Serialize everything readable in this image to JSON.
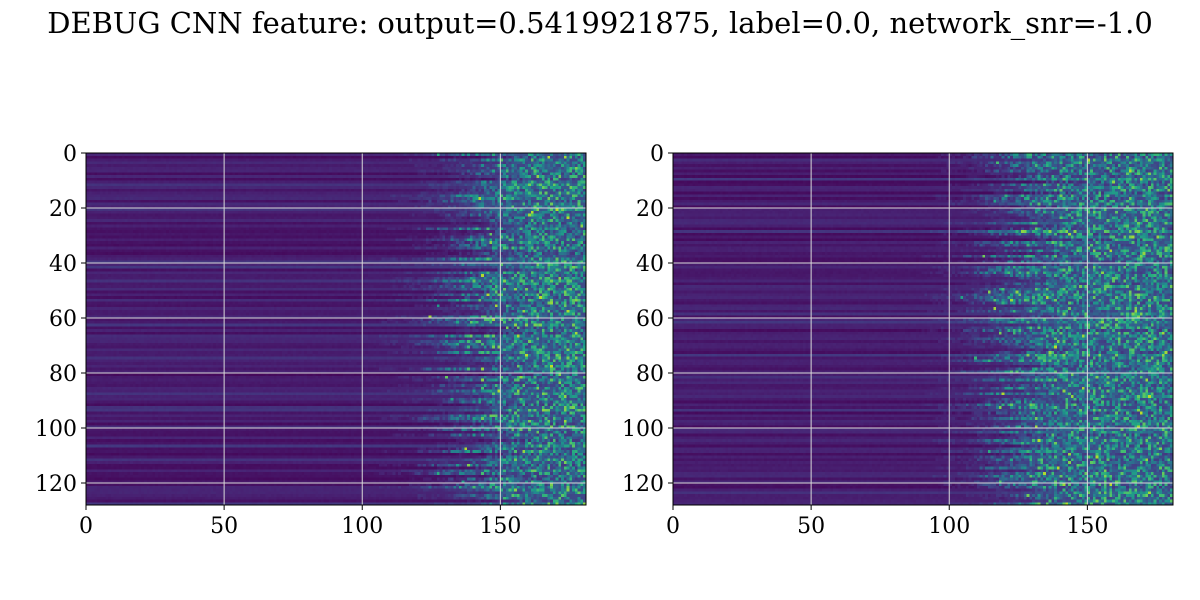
{
  "figure": {
    "suptitle": "DEBUG CNN feature: output=0.5419921875, label=0.0, network_snr=-1.0"
  },
  "chart_data": [
    {
      "type": "heatmap",
      "panel": "left",
      "title": "",
      "xlabel": "",
      "ylabel": "",
      "xlim": [
        0,
        181
      ],
      "ylim": [
        128,
        0
      ],
      "xticks": [
        0,
        50,
        100,
        150
      ],
      "xtick_labels": [
        "0",
        "50",
        "100",
        "150"
      ],
      "yticks": [
        0,
        20,
        40,
        60,
        80,
        100,
        120
      ],
      "ytick_labels": [
        "0",
        "20",
        "40",
        "60",
        "80",
        "100",
        "120"
      ],
      "grid": true,
      "colormap": "viridis",
      "rows": 128,
      "cols": 181,
      "onset_col": 128,
      "seed": 7
    },
    {
      "type": "heatmap",
      "panel": "right",
      "title": "",
      "xlabel": "",
      "ylabel": "",
      "xlim": [
        0,
        181
      ],
      "ylim": [
        128,
        0
      ],
      "xticks": [
        0,
        50,
        100,
        150
      ],
      "xtick_labels": [
        "0",
        "50",
        "100",
        "150"
      ],
      "yticks": [
        0,
        20,
        40,
        60,
        80,
        100,
        120
      ],
      "ytick_labels": [
        "0",
        "20",
        "40",
        "60",
        "80",
        "100",
        "120"
      ],
      "grid": true,
      "colormap": "viridis",
      "rows": 128,
      "cols": 181,
      "onset_col": 112,
      "seed": 13
    }
  ],
  "colors": {
    "background": "#ffffff",
    "grid": "#d9d9d9",
    "viridis_low": "#440154",
    "viridis_high": "#fde725"
  }
}
